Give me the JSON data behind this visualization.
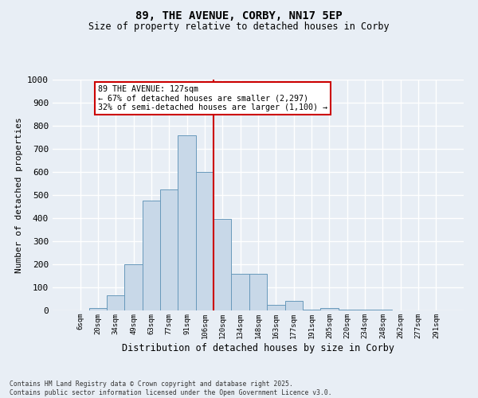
{
  "title1": "89, THE AVENUE, CORBY, NN17 5EP",
  "title2": "Size of property relative to detached houses in Corby",
  "xlabel": "Distribution of detached houses by size in Corby",
  "ylabel": "Number of detached properties",
  "bar_labels": [
    "6sqm",
    "20sqm",
    "34sqm",
    "49sqm",
    "63sqm",
    "77sqm",
    "91sqm",
    "106sqm",
    "120sqm",
    "134sqm",
    "148sqm",
    "163sqm",
    "177sqm",
    "191sqm",
    "205sqm",
    "220sqm",
    "234sqm",
    "248sqm",
    "262sqm",
    "277sqm",
    "291sqm"
  ],
  "bar_values": [
    0,
    10,
    65,
    200,
    475,
    525,
    760,
    600,
    395,
    160,
    160,
    25,
    40,
    5,
    10,
    3,
    3,
    2,
    1,
    0,
    0
  ],
  "bar_color": "#c8d8e8",
  "bar_edge_color": "#6899bb",
  "vline_x_index": 7.5,
  "vline_color": "#cc0000",
  "annotation_text": "89 THE AVENUE: 127sqm\n← 67% of detached houses are smaller (2,297)\n32% of semi-detached houses are larger (1,100) →",
  "annotation_box_color": "#ffffff",
  "annotation_border_color": "#cc0000",
  "ylim": [
    0,
    1000
  ],
  "yticks": [
    0,
    100,
    200,
    300,
    400,
    500,
    600,
    700,
    800,
    900,
    1000
  ],
  "background_color": "#e8eef5",
  "grid_color": "#ffffff",
  "footnote": "Contains HM Land Registry data © Crown copyright and database right 2025.\nContains public sector information licensed under the Open Government Licence v3.0."
}
